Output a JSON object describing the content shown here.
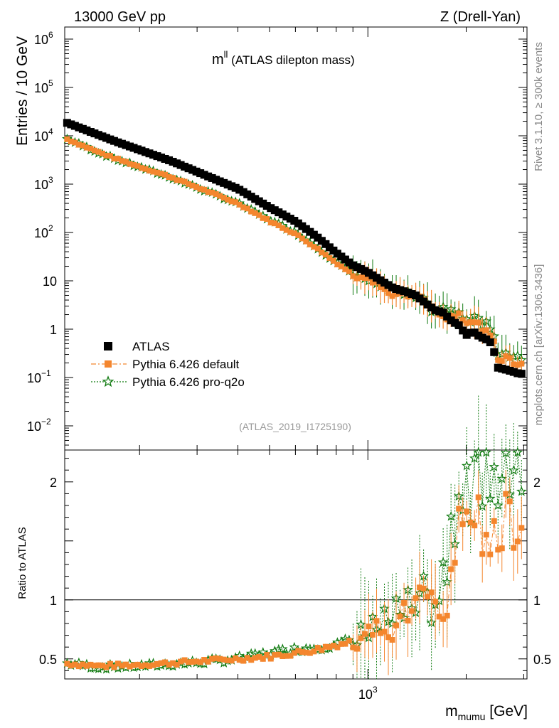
{
  "header": {
    "left": "13000 GeV pp",
    "right": "Z (Drell-Yan)"
  },
  "chart_data": {
    "type": "scatter",
    "title": "m",
    "title_sup": "ll",
    "title_rest": " (ATLAS dilepton mass)",
    "ylabel": "Entries / 10 GeV",
    "xlabel": "m",
    "xlabel_sub": "mumu",
    "xlabel_unit": " [GeV]",
    "x_scale": "log",
    "xlim": [
      118,
      3070
    ],
    "ylim_log10": [
      -2.5,
      6.25
    ],
    "y_ticks": [
      {
        "exp": 6,
        "label": "10",
        "sup": "6"
      },
      {
        "exp": 5,
        "label": "10",
        "sup": "5"
      },
      {
        "exp": 4,
        "label": "10",
        "sup": "4"
      },
      {
        "exp": 3,
        "label": "10",
        "sup": "3"
      },
      {
        "exp": 2,
        "label": "10",
        "sup": "2"
      },
      {
        "exp": 1,
        "label": "10",
        "sup": ""
      },
      {
        "exp": 0,
        "label": "1",
        "sup": ""
      },
      {
        "exp": -1,
        "label": "10",
        "sup": "−1"
      },
      {
        "exp": -2,
        "label": "10",
        "sup": "−2"
      }
    ],
    "x_tick_label": {
      "value": 1000,
      "label": "10",
      "sup": "3"
    },
    "analysis_id": "(ATLAS_2019_I1725190)",
    "side_label_top": "Rivet 3.1.10, ≥ 300k events",
    "side_label_bottom": "mcplots.cern.ch [arXiv:1306.3436]",
    "ratio": {
      "ylabel": "Ratio to ATLAS",
      "ylim": [
        0.33,
        2.27
      ],
      "ticks": [
        {
          "value": 0.5,
          "label": "0.5"
        },
        {
          "value": 1,
          "label": "1"
        },
        {
          "value": 2,
          "label": "2"
        }
      ]
    },
    "legend": [
      {
        "name": "ATLAS",
        "color": "#000000",
        "marker": "square"
      },
      {
        "name": "Pythia 6.426 default",
        "color": "#f4862e",
        "marker": "square"
      },
      {
        "name": "Pythia 6.426 pro-q2o",
        "color": "#0f7a0f",
        "marker": "star"
      }
    ],
    "atlas_points": [
      [
        120,
        18500
      ],
      [
        170,
        7500
      ],
      [
        250,
        3000
      ],
      [
        400,
        800
      ],
      [
        500,
        330
      ],
      [
        600,
        170
      ],
      [
        700,
        80
      ],
      [
        800,
        38
      ],
      [
        900,
        21
      ],
      [
        1000,
        15
      ],
      [
        1100,
        10
      ],
      [
        1200,
        7
      ],
      [
        1300,
        6
      ],
      [
        1400,
        5
      ],
      [
        1500,
        3.5
      ],
      [
        1600,
        2.5
      ],
      [
        1700,
        2.2
      ],
      [
        1800,
        1.5
      ],
      [
        1900,
        1.2
      ],
      [
        2000,
        0.75
      ],
      [
        2100,
        0.9
      ],
      [
        2200,
        0.7
      ],
      [
        2300,
        0.62
      ],
      [
        2400,
        0.5
      ],
      [
        2500,
        0.16
      ],
      [
        2600,
        0.15
      ],
      [
        2700,
        0.14
      ],
      [
        2800,
        0.13
      ],
      [
        2900,
        0.12
      ]
    ],
    "ratio_default": [
      [
        120,
        0.46
      ],
      [
        150,
        0.44
      ],
      [
        200,
        0.45
      ],
      [
        300,
        0.48
      ],
      [
        400,
        0.5
      ],
      [
        500,
        0.52
      ],
      [
        600,
        0.55
      ],
      [
        700,
        0.58
      ],
      [
        800,
        0.62
      ],
      [
        900,
        0.65
      ],
      [
        1000,
        0.68
      ],
      [
        1100,
        0.72
      ],
      [
        1200,
        0.8
      ],
      [
        1300,
        1.0
      ],
      [
        1400,
        0.9
      ],
      [
        1500,
        1.2
      ],
      [
        1600,
        1.1
      ],
      [
        1700,
        0.75
      ],
      [
        1800,
        1.3
      ],
      [
        1900,
        1.6
      ],
      [
        2000,
        1.7
      ],
      [
        2100,
        1.67
      ],
      [
        2200,
        1.67
      ],
      [
        2400,
        1.67
      ],
      [
        2600,
        1.67
      ],
      [
        2800,
        1.67
      ]
    ],
    "ratio_q2o": [
      [
        120,
        0.46
      ],
      [
        150,
        0.43
      ],
      [
        200,
        0.44
      ],
      [
        300,
        0.47
      ],
      [
        400,
        0.5
      ],
      [
        500,
        0.55
      ],
      [
        600,
        0.58
      ],
      [
        700,
        0.6
      ],
      [
        800,
        0.62
      ],
      [
        900,
        0.66
      ],
      [
        1000,
        0.7
      ],
      [
        1100,
        0.75
      ],
      [
        1200,
        0.85
      ],
      [
        1300,
        0.95
      ],
      [
        1400,
        1.1
      ],
      [
        1500,
        1.0
      ],
      [
        1600,
        0.9
      ],
      [
        1700,
        1.2
      ],
      [
        1800,
        1.5
      ],
      [
        1900,
        1.8
      ],
      [
        2000,
        2.0
      ],
      [
        2100,
        2.1
      ],
      [
        2200,
        1.9
      ],
      [
        2300,
        2.0
      ],
      [
        2400,
        2.1
      ]
    ]
  }
}
